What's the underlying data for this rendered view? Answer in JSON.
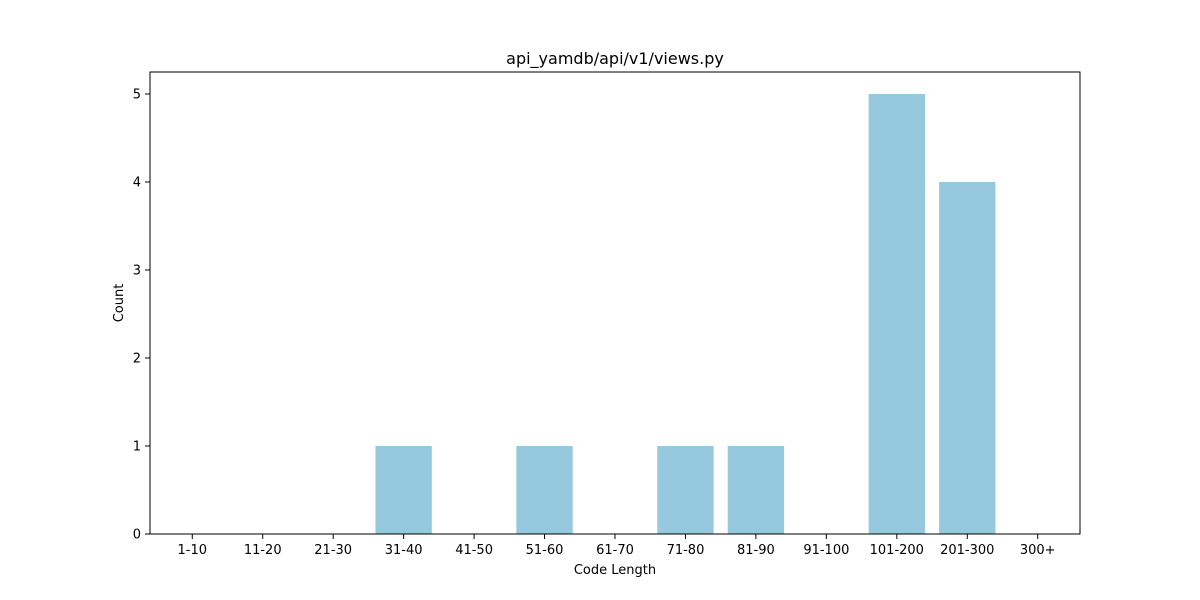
{
  "chart_data": {
    "type": "bar",
    "title": "api_yamdb/api/v1/views.py",
    "xlabel": "Code Length",
    "ylabel": "Count",
    "categories": [
      "1-10",
      "11-20",
      "21-30",
      "31-40",
      "41-50",
      "51-60",
      "61-70",
      "71-80",
      "81-90",
      "91-100",
      "101-200",
      "201-300",
      "300+"
    ],
    "values": [
      0,
      0,
      0,
      1,
      0,
      1,
      0,
      1,
      1,
      0,
      5,
      4,
      0
    ],
    "ylim": [
      0,
      5.25
    ],
    "yticks": [
      0,
      1,
      2,
      3,
      4,
      5
    ],
    "grid": false,
    "bar_color": "#96c9dd"
  }
}
